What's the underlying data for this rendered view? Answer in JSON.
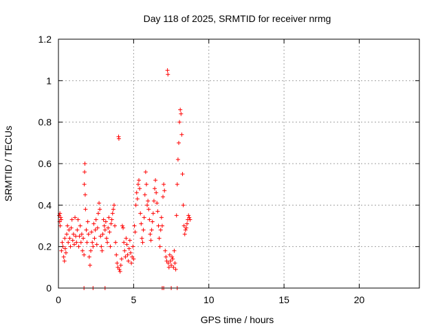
{
  "chart_data": {
    "type": "scatter",
    "title": "Day 118 of 2025, SRMTID for receiver nrmg",
    "xlabel": "GPS time / hours",
    "ylabel": "SRMTID / TECUs",
    "xlim": [
      0,
      24
    ],
    "ylim": [
      0,
      1.2
    ],
    "xticks": [
      0,
      5,
      10,
      15,
      20
    ],
    "xtick_labels": [
      "0",
      "5",
      "10",
      "15",
      "20"
    ],
    "yticks": [
      0,
      0.2,
      0.4,
      0.6,
      0.8,
      1.0,
      1.2
    ],
    "ytick_labels": [
      "0",
      "0.2",
      "0.4",
      "0.6",
      "0.8",
      "1",
      "1.2"
    ],
    "grid": true,
    "marker": "+",
    "series": [
      {
        "name": "nrmg",
        "color": "#ff0000",
        "points": [
          [
            0.05,
            0.35
          ],
          [
            0.08,
            0.32
          ],
          [
            0.1,
            0.36
          ],
          [
            0.12,
            0.3
          ],
          [
            0.15,
            0.34
          ],
          [
            0.18,
            0.33
          ],
          [
            0.2,
            0.18
          ],
          [
            0.25,
            0.22
          ],
          [
            0.3,
            0.2
          ],
          [
            0.35,
            0.15
          ],
          [
            0.4,
            0.13
          ],
          [
            0.42,
            0.24
          ],
          [
            0.45,
            0.19
          ],
          [
            0.5,
            0.17
          ],
          [
            0.55,
            0.26
          ],
          [
            0.6,
            0.3
          ],
          [
            0.65,
            0.22
          ],
          [
            0.7,
            0.28
          ],
          [
            0.75,
            0.24
          ],
          [
            0.8,
            0.2
          ],
          [
            0.85,
            0.29
          ],
          [
            0.9,
            0.33
          ],
          [
            0.95,
            0.23
          ],
          [
            1.0,
            0.26
          ],
          [
            1.05,
            0.21
          ],
          [
            1.1,
            0.34
          ],
          [
            1.15,
            0.25
          ],
          [
            1.2,
            0.22
          ],
          [
            1.25,
            0.28
          ],
          [
            1.3,
            0.33
          ],
          [
            1.35,
            0.2
          ],
          [
            1.4,
            0.25
          ],
          [
            1.45,
            0.3
          ],
          [
            1.5,
            0.22
          ],
          [
            1.55,
            0.26
          ],
          [
            1.6,
            0.18
          ],
          [
            1.65,
            0.24
          ],
          [
            1.7,
            0.16
          ],
          [
            1.72,
            0.5
          ],
          [
            1.74,
            0.56
          ],
          [
            1.76,
            0.6
          ],
          [
            1.78,
            0.45
          ],
          [
            1.8,
            0.38
          ],
          [
            1.85,
            0.28
          ],
          [
            1.9,
            0.22
          ],
          [
            1.95,
            0.32
          ],
          [
            2.0,
            0.26
          ],
          [
            2.05,
            0.15
          ],
          [
            2.1,
            0.11
          ],
          [
            2.15,
            0.18
          ],
          [
            2.2,
            0.27
          ],
          [
            2.25,
            0.22
          ],
          [
            2.3,
            0.2
          ],
          [
            2.35,
            0.31
          ],
          [
            2.4,
            0.24
          ],
          [
            2.45,
            0.28
          ],
          [
            2.5,
            0.33
          ],
          [
            2.55,
            0.21
          ],
          [
            2.6,
            0.29
          ],
          [
            2.65,
            0.36
          ],
          [
            2.7,
            0.41
          ],
          [
            2.75,
            0.38
          ],
          [
            2.8,
            0.25
          ],
          [
            2.85,
            0.2
          ],
          [
            2.9,
            0.18
          ],
          [
            2.95,
            0.26
          ],
          [
            3.0,
            0.33
          ],
          [
            3.05,
            0.3
          ],
          [
            3.1,
            0.28
          ],
          [
            3.15,
            0.32
          ],
          [
            3.2,
            0.24
          ],
          [
            3.25,
            0.22
          ],
          [
            3.3,
            0.29
          ],
          [
            3.35,
            0.34
          ],
          [
            3.4,
            0.27
          ],
          [
            3.45,
            0.2
          ],
          [
            3.5,
            0.31
          ],
          [
            3.55,
            0.33
          ],
          [
            3.6,
            0.36
          ],
          [
            3.65,
            0.38
          ],
          [
            3.7,
            0.4
          ],
          [
            3.75,
            0.3
          ],
          [
            3.8,
            0.22
          ],
          [
            3.85,
            0.16
          ],
          [
            3.9,
            0.12
          ],
          [
            3.95,
            0.1
          ],
          [
            4.0,
            0.73
          ],
          [
            4.02,
            0.72
          ],
          [
            4.05,
            0.09
          ],
          [
            4.1,
            0.08
          ],
          [
            4.15,
            0.11
          ],
          [
            4.2,
            0.14
          ],
          [
            4.25,
            0.3
          ],
          [
            4.3,
            0.29
          ],
          [
            4.35,
            0.22
          ],
          [
            4.4,
            0.18
          ],
          [
            4.45,
            0.15
          ],
          [
            4.5,
            0.24
          ],
          [
            4.55,
            0.21
          ],
          [
            4.6,
            0.16
          ],
          [
            4.65,
            0.13
          ],
          [
            4.7,
            0.19
          ],
          [
            4.75,
            0.23
          ],
          [
            4.8,
            0.17
          ],
          [
            4.85,
            0.12
          ],
          [
            4.9,
            0.15
          ],
          [
            4.95,
            0.2
          ],
          [
            5.0,
            0.14
          ],
          [
            5.05,
            0.3
          ],
          [
            5.1,
            0.27
          ],
          [
            5.15,
            0.4
          ],
          [
            5.2,
            0.46
          ],
          [
            5.25,
            0.43
          ],
          [
            5.3,
            0.5
          ],
          [
            5.35,
            0.52
          ],
          [
            5.4,
            0.48
          ],
          [
            5.45,
            0.36
          ],
          [
            5.5,
            0.31
          ],
          [
            5.55,
            0.24
          ],
          [
            5.6,
            0.22
          ],
          [
            5.65,
            0.28
          ],
          [
            5.7,
            0.34
          ],
          [
            5.75,
            0.45
          ],
          [
            5.8,
            0.56
          ],
          [
            5.85,
            0.5
          ],
          [
            5.9,
            0.4
          ],
          [
            5.95,
            0.42
          ],
          [
            6.0,
            0.38
          ],
          [
            6.05,
            0.33
          ],
          [
            6.1,
            0.26
          ],
          [
            6.15,
            0.23
          ],
          [
            6.2,
            0.28
          ],
          [
            6.25,
            0.32
          ],
          [
            6.3,
            0.36
          ],
          [
            6.35,
            0.42
          ],
          [
            6.4,
            0.48
          ],
          [
            6.45,
            0.52
          ],
          [
            6.5,
            0.46
          ],
          [
            6.55,
            0.41
          ],
          [
            6.6,
            0.37
          ],
          [
            6.65,
            0.3
          ],
          [
            6.7,
            0.24
          ],
          [
            6.75,
            0.2
          ],
          [
            6.8,
            0.28
          ],
          [
            6.85,
            0.34
          ],
          [
            6.9,
            0.3
          ],
          [
            6.95,
            0.44
          ],
          [
            7.0,
            0.5
          ],
          [
            7.05,
            0.47
          ],
          [
            7.1,
            0.18
          ],
          [
            7.15,
            0.15
          ],
          [
            7.2,
            0.13
          ],
          [
            7.25,
            1.05
          ],
          [
            7.28,
            1.03
          ],
          [
            7.3,
            0.12
          ],
          [
            7.35,
            0.1
          ],
          [
            7.4,
            0.16
          ],
          [
            7.45,
            0.13
          ],
          [
            7.5,
            0.11
          ],
          [
            7.55,
            0.15
          ],
          [
            7.6,
            0.14
          ],
          [
            7.65,
            0.1
          ],
          [
            7.7,
            0.18
          ],
          [
            7.75,
            0.12
          ],
          [
            7.8,
            0.09
          ],
          [
            7.85,
            0.35
          ],
          [
            7.9,
            0.5
          ],
          [
            7.95,
            0.62
          ],
          [
            8.0,
            0.7
          ],
          [
            8.05,
            0.8
          ],
          [
            8.1,
            0.86
          ],
          [
            8.15,
            0.84
          ],
          [
            8.2,
            0.74
          ],
          [
            8.25,
            0.55
          ],
          [
            8.3,
            0.4
          ],
          [
            8.35,
            0.3
          ],
          [
            8.4,
            0.26
          ],
          [
            8.45,
            0.28
          ],
          [
            8.5,
            0.29
          ],
          [
            8.55,
            0.31
          ],
          [
            8.6,
            0.33
          ],
          [
            8.65,
            0.35
          ],
          [
            8.7,
            0.34
          ],
          [
            8.75,
            0.33
          ],
          [
            1.7,
            0.0
          ],
          [
            2.3,
            0.0
          ],
          [
            3.1,
            0.0
          ],
          [
            6.9,
            0.0
          ],
          [
            7.0,
            0.0
          ],
          [
            7.5,
            0.0
          ],
          [
            7.9,
            0.0
          ]
        ]
      }
    ]
  }
}
